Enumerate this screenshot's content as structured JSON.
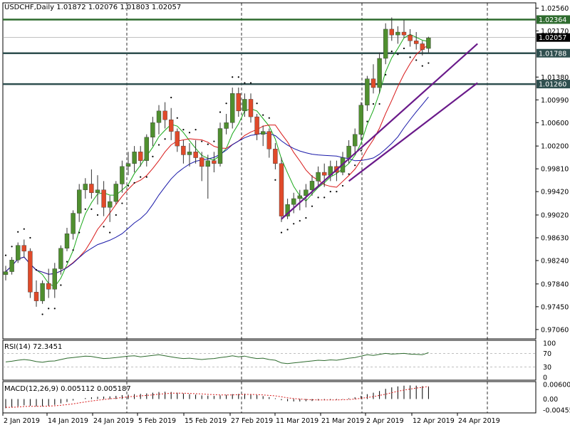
{
  "chart_data": {
    "type": "candlestick",
    "symbol": "USDCHF",
    "timeframe": "Daily",
    "ohlc_header": "1.01872 1.02076 1.01803 1.02057",
    "title": "USDCHF,Daily  1.01872 1.02076 1.01803 1.02057",
    "ylim": [
      0.969,
      1.0265
    ],
    "y_ticks": [
      "1.02560",
      "1.02170",
      "1.01380",
      "1.00990",
      "1.00600",
      "1.00200",
      "0.99810",
      "0.99420",
      "0.99020",
      "0.98630",
      "0.98240",
      "0.97840",
      "0.97450",
      "0.97060"
    ],
    "x_tick_labels": [
      {
        "label": "2 Jan 2019",
        "index": 0
      },
      {
        "label": "14 Jan 2019",
        "index": 8
      },
      {
        "label": "24 Jan 2019",
        "index": 16
      },
      {
        "label": "5 Feb 2019",
        "index": 24
      },
      {
        "label": "15 Feb 2019",
        "index": 32
      },
      {
        "label": "27 Feb 2019",
        "index": 40
      },
      {
        "label": "11 Mar 2019",
        "index": 48
      },
      {
        "label": "21 Mar 2019",
        "index": 56
      },
      {
        "label": "2 Apr 2019",
        "index": 64
      },
      {
        "label": "12 Apr 2019",
        "index": 72
      },
      {
        "label": "24 Apr 2019",
        "index": 80
      }
    ],
    "vertical_separators": [
      0,
      22,
      42,
      63,
      83
    ],
    "horizontal_levels": [
      {
        "value": 1.02364,
        "label": "1.02364",
        "color": "#2e6b2e"
      },
      {
        "value": 1.01788,
        "label": "1.01788",
        "color": "#2f4f4f"
      },
      {
        "value": 1.0126,
        "label": "1.01260",
        "color": "#2f4f4f"
      }
    ],
    "current_price": {
      "value": 1.02057,
      "label": "1.02057"
    },
    "candles": [
      [
        0.98,
        0.9815,
        0.979,
        0.9805
      ],
      [
        0.9805,
        0.983,
        0.98,
        0.9825
      ],
      [
        0.9825,
        0.9855,
        0.982,
        0.985
      ],
      [
        0.985,
        0.986,
        0.983,
        0.984
      ],
      [
        0.984,
        0.9845,
        0.976,
        0.977
      ],
      [
        0.977,
        0.979,
        0.9745,
        0.9755
      ],
      [
        0.9755,
        0.979,
        0.975,
        0.9785
      ],
      [
        0.9785,
        0.981,
        0.976,
        0.9775
      ],
      [
        0.9775,
        0.982,
        0.976,
        0.981
      ],
      [
        0.981,
        0.985,
        0.98,
        0.9845
      ],
      [
        0.9845,
        0.988,
        0.984,
        0.987
      ],
      [
        0.987,
        0.991,
        0.986,
        0.9905
      ],
      [
        0.9905,
        0.9955,
        0.989,
        0.9945
      ],
      [
        0.9945,
        0.9965,
        0.993,
        0.9955
      ],
      [
        0.9955,
        0.998,
        0.993,
        0.994
      ],
      [
        0.994,
        0.997,
        0.992,
        0.9945
      ],
      [
        0.9945,
        0.996,
        0.99,
        0.9915
      ],
      [
        0.9915,
        0.9935,
        0.989,
        0.9925
      ],
      [
        0.9925,
        0.996,
        0.992,
        0.9955
      ],
      [
        0.9955,
        0.9995,
        0.994,
        0.9985
      ],
      [
        0.9985,
        1.001,
        0.997,
        0.999
      ],
      [
        0.999,
        1.002,
        0.9975,
        1.001
      ],
      [
        1.001,
        1.002,
        0.9985,
        0.9995
      ],
      [
        0.9995,
        1.004,
        0.9985,
        1.0035
      ],
      [
        1.0035,
        1.007,
        1.002,
        1.006
      ],
      [
        1.006,
        1.009,
        1.004,
        1.008
      ],
      [
        1.008,
        1.0095,
        1.005,
        1.0065
      ],
      [
        1.0065,
        1.0085,
        1.003,
        1.0045
      ],
      [
        1.0045,
        1.005,
        1.001,
        1.002
      ],
      [
        1.002,
        1.003,
        0.999,
        1.0005
      ],
      [
        1.0005,
        1.0025,
        0.9985,
        1.001
      ],
      [
        1.001,
        1.003,
        0.999,
        1.0
      ],
      [
        1.0,
        1.001,
        0.996,
        0.9985
      ],
      [
        0.9985,
        1.0005,
        0.993,
        0.9995
      ],
      [
        0.9995,
        1.001,
        0.9975,
        0.999
      ],
      [
        0.999,
        1.006,
        0.9985,
        1.005
      ],
      [
        1.005,
        1.0075,
        1.004,
        1.006
      ],
      [
        1.006,
        1.012,
        1.005,
        1.011
      ],
      [
        1.011,
        1.012,
        1.007,
        1.008
      ],
      [
        1.008,
        1.011,
        1.007,
        1.01
      ],
      [
        1.01,
        1.011,
        1.006,
        1.007
      ],
      [
        1.007,
        1.0075,
        1.003,
        1.004
      ],
      [
        1.004,
        1.0055,
        1.002,
        1.0045
      ],
      [
        1.0045,
        1.005,
        1.0,
        1.0015
      ],
      [
        1.0015,
        1.0025,
        0.998,
        0.999
      ],
      [
        0.999,
        1.0,
        0.989,
        0.99
      ],
      [
        0.99,
        0.993,
        0.9895,
        0.992
      ],
      [
        0.992,
        0.994,
        0.9905,
        0.993
      ],
      [
        0.993,
        0.9945,
        0.991,
        0.9935
      ],
      [
        0.9935,
        0.9955,
        0.9915,
        0.9945
      ],
      [
        0.9945,
        0.997,
        0.9935,
        0.996
      ],
      [
        0.996,
        0.9985,
        0.995,
        0.9975
      ],
      [
        0.9975,
        0.999,
        0.995,
        0.997
      ],
      [
        0.997,
        0.9995,
        0.996,
        0.9985
      ],
      [
        0.9985,
        0.9995,
        0.996,
        0.9975
      ],
      [
        0.9975,
        1.001,
        0.997,
        1.0
      ],
      [
        1.0,
        1.003,
        0.999,
        1.002
      ],
      [
        1.002,
        1.005,
        1.0005,
        1.004
      ],
      [
        1.004,
        1.0095,
        1.003,
        1.009
      ],
      [
        1.009,
        1.014,
        1.008,
        1.0135
      ],
      [
        1.0135,
        1.016,
        1.011,
        1.012
      ],
      [
        1.012,
        1.018,
        1.011,
        1.017
      ],
      [
        1.017,
        1.023,
        1.016,
        1.022
      ],
      [
        1.022,
        1.024,
        1.02,
        1.021
      ],
      [
        1.021,
        1.0225,
        1.0195,
        1.0215
      ],
      [
        1.0215,
        1.0236,
        1.0205,
        1.021
      ],
      [
        1.021,
        1.022,
        1.019,
        1.02
      ],
      [
        1.02,
        1.0215,
        1.0185,
        1.0195
      ],
      [
        1.0195,
        1.02,
        1.0175,
        1.0185
      ],
      [
        1.0187,
        1.0207,
        1.018,
        1.0205
      ]
    ],
    "candle_index_offset": 0,
    "moving_averages": [
      {
        "color": "#18a818",
        "period_desc": "fast"
      },
      {
        "color": "#d81818",
        "period_desc": "medium"
      },
      {
        "color": "#1818a8",
        "period_desc": "slow"
      }
    ],
    "trendlines": [
      {
        "color": "#6a1a8a",
        "from": {
          "index": 45,
          "value": 0.9895
        },
        "to": {
          "index": 77,
          "value": 1.0195
        }
      },
      {
        "color": "#6a1a8a",
        "from": {
          "index": 56,
          "value": 0.996
        },
        "to": {
          "index": 77,
          "value": 1.0128
        }
      }
    ],
    "rsi": {
      "label": "RSI(14) 72.3451",
      "ticks": [
        "100",
        "70",
        "30",
        "0"
      ],
      "levels": [
        70,
        30
      ],
      "values": [
        45,
        47,
        50,
        52,
        50,
        46,
        44,
        47,
        48,
        52,
        56,
        58,
        60,
        62,
        61,
        58,
        55,
        56,
        58,
        60,
        62,
        63,
        60,
        62,
        64,
        66,
        63,
        60,
        57,
        55,
        56,
        54,
        52,
        54,
        55,
        58,
        60,
        63,
        60,
        62,
        58,
        55,
        56,
        52,
        50,
        42,
        40,
        42,
        44,
        46,
        48,
        50,
        49,
        51,
        50,
        53,
        56,
        58,
        62,
        66,
        64,
        67,
        70,
        68,
        69,
        70,
        68,
        67,
        66,
        72
      ]
    },
    "macd": {
      "label": "MACD(12,26,9) 0.005112 0.005187",
      "ticks": [
        "0.006003",
        "0.00",
        "-0.004552"
      ],
      "histogram": [
        -0.0038,
        -0.0035,
        -0.003,
        -0.0026,
        -0.0028,
        -0.003,
        -0.003,
        -0.0028,
        -0.0024,
        -0.0018,
        -0.0012,
        -0.0006,
        0.0,
        0.0004,
        0.0007,
        0.0009,
        0.001,
        0.0011,
        0.0013,
        0.0016,
        0.0018,
        0.002,
        0.0021,
        0.0023,
        0.0026,
        0.0029,
        0.003,
        0.0029,
        0.0026,
        0.0023,
        0.002,
        0.0018,
        0.0015,
        0.0014,
        0.0013,
        0.0015,
        0.0017,
        0.002,
        0.0021,
        0.0022,
        0.002,
        0.0016,
        0.0012,
        0.0008,
        0.0003,
        -0.0005,
        -0.0009,
        -0.001,
        -0.001,
        -0.0009,
        -0.0008,
        -0.0006,
        -0.0005,
        -0.0004,
        -0.0003,
        -0.0001,
        0.0003,
        0.0007,
        0.0013,
        0.002,
        0.0026,
        0.0033,
        0.0042,
        0.0048,
        0.0052,
        0.0055,
        0.0056,
        0.0055,
        0.0053,
        0.0051
      ],
      "signal": [
        -0.0034,
        -0.0034,
        -0.0033,
        -0.0031,
        -0.003,
        -0.003,
        -0.003,
        -0.0029,
        -0.0028,
        -0.0026,
        -0.0023,
        -0.002,
        -0.0016,
        -0.0012,
        -0.0008,
        -0.0005,
        -0.0002,
        0.0001,
        0.0003,
        0.0006,
        0.0009,
        0.0011,
        0.0013,
        0.0015,
        0.0017,
        0.002,
        0.0022,
        0.0024,
        0.0024,
        0.0024,
        0.0023,
        0.0022,
        0.0021,
        0.0019,
        0.0018,
        0.0017,
        0.0017,
        0.0017,
        0.0018,
        0.0019,
        0.0019,
        0.0018,
        0.0017,
        0.0015,
        0.0013,
        0.0009,
        0.0005,
        0.0002,
        0.0,
        -0.0002,
        -0.0003,
        -0.0004,
        -0.0004,
        -0.0004,
        -0.0004,
        -0.0003,
        -0.0002,
        0.0,
        0.0003,
        0.0006,
        0.001,
        0.0015,
        0.002,
        0.0026,
        0.0032,
        0.0037,
        0.0041,
        0.0045,
        0.0048,
        0.0052
      ]
    }
  }
}
